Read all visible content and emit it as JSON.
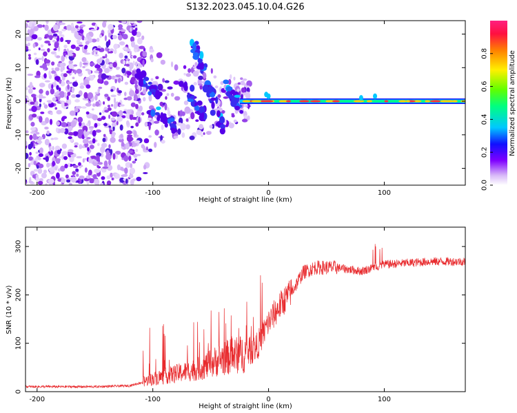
{
  "chart_data": [
    {
      "type": "heatmap",
      "title": "S132.2023.045.10.04.G26",
      "xlabel": "Height of straight line (km)",
      "ylabel": "Frequency (Hz)",
      "xlim": [
        -210,
        170
      ],
      "ylim": [
        -25,
        24
      ],
      "xticks": [
        -200,
        -100,
        0,
        100
      ],
      "xtick_labels": [
        "-200",
        "-100",
        "0",
        "100"
      ],
      "yticks": [
        -20,
        -10,
        0,
        10,
        20
      ],
      "ytick_labels": [
        "-20",
        "-10",
        "0",
        "10",
        "20"
      ],
      "colorbar": {
        "label": "Normalized spectral amplitude",
        "range": [
          0,
          1
        ],
        "ticks": [
          0.0,
          0.2,
          0.4,
          0.6,
          0.8
        ],
        "tick_labels": [
          "0.0",
          "0.2",
          "0.4",
          "0.6",
          "0.8"
        ]
      },
      "features": [
        {
          "description": "scattered noise",
          "x_range": [
            -210,
            -110
          ],
          "freq_range": [
            -25,
            24
          ]
        },
        {
          "description": "diffuse blobs",
          "x_range": [
            -125,
            -20
          ],
          "freq_range": [
            -20,
            17
          ]
        },
        {
          "description": "narrow carrier line",
          "x_range": [
            -20,
            170
          ],
          "freq": 0
        }
      ]
    },
    {
      "type": "line",
      "xlabel": "Height of straight line (km)",
      "ylabel": "SNR (10 * v/v)",
      "xlim": [
        -210,
        170
      ],
      "ylim": [
        0,
        340
      ],
      "xticks": [
        -200,
        -100,
        0,
        100
      ],
      "xtick_labels": [
        "-200",
        "-100",
        "0",
        "100"
      ],
      "yticks": [
        0,
        100,
        200,
        300
      ],
      "ytick_labels": [
        "0",
        "100",
        "200",
        "300"
      ],
      "color": "#e8292c",
      "trend": {
        "x": [
          -210,
          -150,
          -120,
          -100,
          -80,
          -60,
          -40,
          -20,
          -10,
          0,
          10,
          20,
          30,
          40,
          60,
          80,
          100,
          120,
          140,
          170
        ],
        "y": [
          10,
          10,
          12,
          25,
          35,
          45,
          65,
          75,
          90,
          140,
          175,
          205,
          245,
          255,
          255,
          248,
          262,
          265,
          268,
          268
        ]
      }
    }
  ]
}
